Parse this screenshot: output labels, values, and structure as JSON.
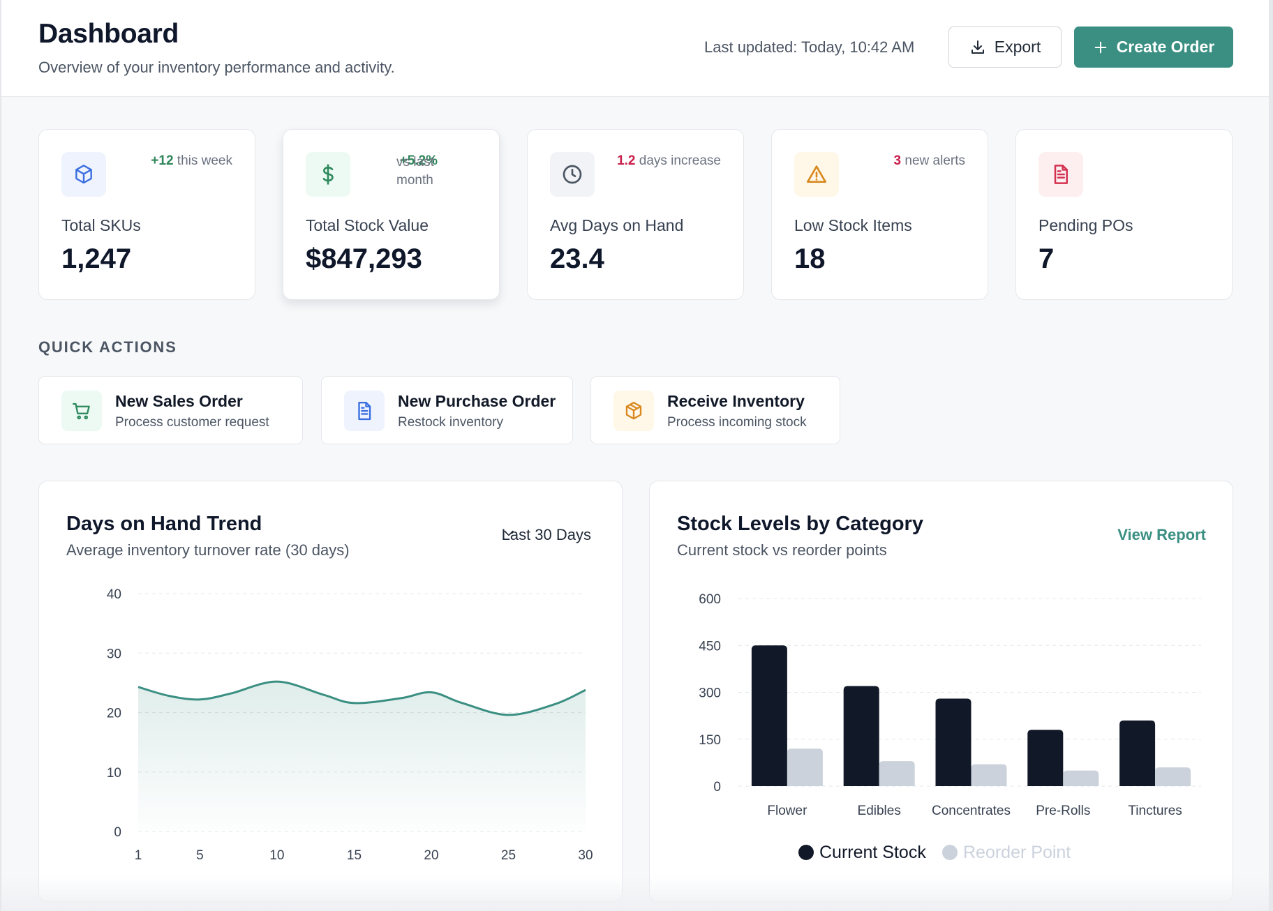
{
  "header": {
    "title": "Dashboard",
    "subtitle": "Overview of your inventory performance and activity.",
    "last_updated": "Last updated: Today, 10:42 AM",
    "export_label": "Export",
    "create_label": "Create Order"
  },
  "stats": [
    {
      "label": "Total SKUs",
      "value": "1,247",
      "delta_amount": "+12",
      "delta_text": "this week",
      "delta_color": "#2f855a",
      "icon": "cube-icon"
    },
    {
      "label": "Total Stock Value",
      "value": "$847,293",
      "delta_amount": "+5.2%",
      "delta_text": "vs last month",
      "delta_color": "#2f855a",
      "icon": "dollar-icon"
    },
    {
      "label": "Avg Days on Hand",
      "value": "23.4",
      "delta_amount": "1.2",
      "delta_text": "days increase",
      "delta_color": "#c81e4a",
      "icon": "clock-icon"
    },
    {
      "label": "Low Stock Items",
      "value": "18",
      "delta_amount": "3",
      "delta_text": "new alerts",
      "delta_color": "#c81e4a",
      "icon": "warning-icon"
    },
    {
      "label": "Pending POs",
      "value": "7",
      "icon": "document-icon"
    }
  ],
  "quick_actions": {
    "title": "QUICK ACTIONS",
    "items": [
      {
        "name": "New Sales Order",
        "desc": "Process customer request",
        "icon": "cart-icon"
      },
      {
        "name": "New Purchase Order",
        "desc": "Restock inventory",
        "icon": "document-icon"
      },
      {
        "name": "Receive Inventory",
        "desc": "Process incoming stock",
        "icon": "package-icon"
      }
    ]
  },
  "trend_panel": {
    "title": "Days on Hand Trend",
    "subtitle": "Average inventory turnover rate (30 days)",
    "range": "Last 30 Days"
  },
  "stock_panel": {
    "title": "Stock Levels by Category",
    "subtitle": "Current stock vs reorder points",
    "link": "View Report"
  },
  "colors": {
    "accent": "#3a8f82",
    "dark_bar": "#111827",
    "light_bar": "#cbd2dc",
    "positive": "#2f855a",
    "negative": "#c81e4a"
  },
  "chart_data": [
    {
      "type": "area",
      "title": "Days on Hand Trend",
      "x": [
        1,
        3,
        5,
        7,
        10,
        13,
        15,
        18,
        20,
        22,
        25,
        28,
        30
      ],
      "y": [
        24.3,
        22.8,
        22.2,
        23.2,
        25.2,
        23.0,
        21.6,
        22.4,
        23.4,
        21.6,
        19.6,
        21.4,
        23.8
      ],
      "xticks": [
        1,
        5,
        10,
        15,
        20,
        25,
        30
      ],
      "yticks": [
        0,
        10,
        20,
        30,
        40
      ],
      "ylim": [
        0,
        40
      ],
      "xlim": [
        1,
        30
      ],
      "grid": true
    },
    {
      "type": "bar",
      "title": "Stock Levels by Category",
      "categories": [
        "Flower",
        "Edibles",
        "Concentrates",
        "Pre-Rolls",
        "Tinctures"
      ],
      "series": [
        {
          "name": "Current Stock",
          "values": [
            450,
            320,
            280,
            180,
            210
          ]
        },
        {
          "name": "Reorder Point",
          "values": [
            120,
            80,
            70,
            50,
            60
          ]
        }
      ],
      "yticks": [
        0,
        150,
        300,
        450,
        600
      ],
      "ylim": [
        0,
        600
      ],
      "legend": "bottom-center",
      "grid": true
    }
  ]
}
